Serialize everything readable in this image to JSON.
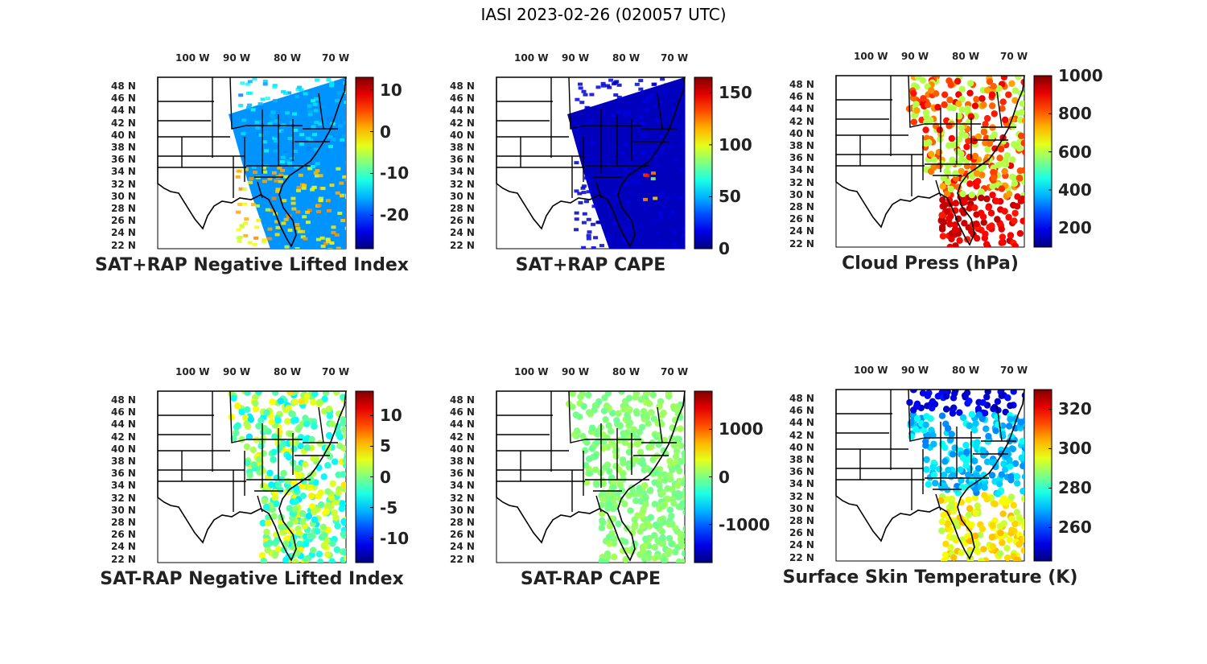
{
  "figure": {
    "title": "IASI 2023-02-26 (020057 UTC)"
  },
  "lon_ticks": [
    "100 W",
    "90 W",
    "80 W",
    "70 W"
  ],
  "lat_ticks": [
    "48 N",
    "46 N",
    "44 N",
    "42 N",
    "40 N",
    "38 N",
    "36 N",
    "34 N",
    "32 N",
    "30 N",
    "28 N",
    "26 N",
    "24 N",
    "22 N"
  ],
  "colormap": "jet",
  "panels": [
    {
      "title": "SAT+RAP Negative Lifted Index",
      "colorbar": {
        "ticks": [
          10,
          0,
          -10,
          -20
        ],
        "range": [
          -28,
          13
        ]
      },
      "style": "swath"
    },
    {
      "title": "SAT+RAP CAPE",
      "colorbar": {
        "ticks": [
          150,
          100,
          50,
          0
        ],
        "range": [
          0,
          165
        ]
      },
      "style": "swath"
    },
    {
      "title": "Cloud Press (hPa)",
      "colorbar": {
        "ticks": [
          1000,
          800,
          600,
          400,
          200
        ],
        "range": [
          100,
          1000
        ]
      },
      "style": "dots"
    },
    {
      "title": "SAT-RAP Negative Lifted Index",
      "colorbar": {
        "ticks": [
          10,
          5,
          0,
          -5,
          -10
        ],
        "range": [
          -14,
          14
        ]
      },
      "style": "dots"
    },
    {
      "title": "SAT-RAP CAPE",
      "colorbar": {
        "ticks": [
          1000,
          0,
          -1000
        ],
        "range": [
          -1800,
          1800
        ]
      },
      "style": "dots"
    },
    {
      "title": "Surface Skin Temperature (K)",
      "colorbar": {
        "ticks": [
          320,
          300,
          280,
          260
        ],
        "range": [
          243,
          330
        ]
      },
      "style": "dots"
    }
  ]
}
